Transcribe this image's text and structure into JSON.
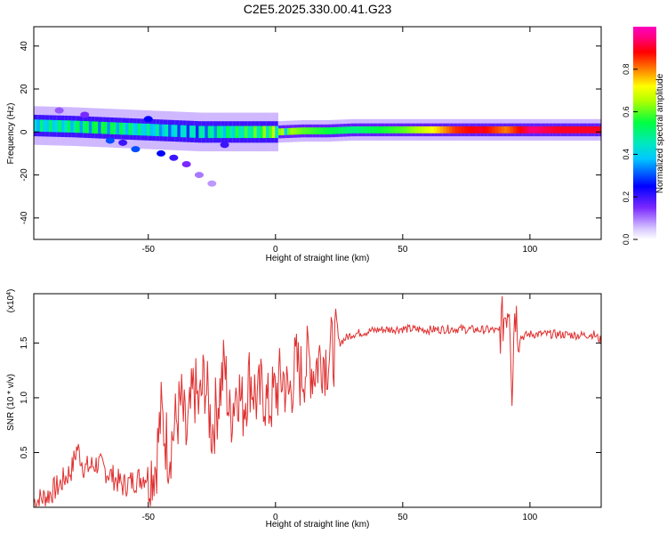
{
  "figure_title": "C2E5.2025.330.00.41.G23",
  "chart_data": [
    {
      "type": "heatmap",
      "title": "C2E5.2025.330.00.41.G23",
      "xlabel": "Height of straight line (km)",
      "ylabel": "Frequency (Hz)",
      "xlim": [
        -95,
        128
      ],
      "ylim": [
        -50,
        49
      ],
      "xticks": [
        -50,
        0,
        50,
        100
      ],
      "yticks": [
        -40,
        -20,
        0,
        20,
        40
      ],
      "colorbar": {
        "label": "Normalized spectral amplitude",
        "range": [
          0,
          1
        ],
        "ticks": [
          0.0,
          0.2,
          0.4,
          0.6,
          0.8
        ],
        "tick_labels": [
          "0.0",
          "0.2",
          "0.4",
          "0.6",
          "0.8"
        ]
      },
      "ridge": {
        "x": [
          -95,
          -80,
          -70,
          -60,
          -50,
          -40,
          -30,
          -20,
          -10,
          0,
          10,
          20,
          30,
          40,
          50,
          60,
          70,
          80,
          90,
          100,
          110,
          120,
          128
        ],
        "frequency_hz": [
          3,
          2.5,
          2,
          1.5,
          1,
          0.5,
          0,
          0,
          0,
          0,
          0.5,
          0.5,
          1,
          1,
          1,
          1,
          1,
          1,
          1,
          1,
          1,
          1,
          1
        ],
        "amplitude": [
          0.5,
          0.55,
          0.6,
          0.55,
          0.5,
          0.45,
          0.5,
          0.55,
          0.6,
          0.7,
          0.6,
          0.55,
          0.5,
          0.55,
          0.6,
          0.7,
          0.85,
          0.9,
          0.8,
          0.95,
          0.9,
          0.9,
          0.9
        ]
      },
      "scatter_blobs": [
        {
          "x": -45,
          "freq": -10,
          "amp": 0.25
        },
        {
          "x": -40,
          "freq": -12,
          "amp": 0.2
        },
        {
          "x": -35,
          "freq": -15,
          "amp": 0.15
        },
        {
          "x": -55,
          "freq": -8,
          "amp": 0.3
        },
        {
          "x": -30,
          "freq": -20,
          "amp": 0.1
        },
        {
          "x": -25,
          "freq": -24,
          "amp": 0.08
        },
        {
          "x": -60,
          "freq": -5,
          "amp": 0.2
        },
        {
          "x": -75,
          "freq": 8,
          "amp": 0.15
        },
        {
          "x": -85,
          "freq": 10,
          "amp": 0.12
        },
        {
          "x": -50,
          "freq": 6,
          "amp": 0.25
        },
        {
          "x": -20,
          "freq": -6,
          "amp": 0.2
        },
        {
          "x": -65,
          "freq": -4,
          "amp": 0.3
        }
      ]
    },
    {
      "type": "line",
      "xlabel": "Height of straight line (km)",
      "ylabel": "SNR (10 * v/v)",
      "y_multiplier": "(x10",
      "y_multiplier_exp": "4",
      "y_multiplier_close": ")",
      "xlim": [
        -95,
        128
      ],
      "ylim": [
        0,
        1.95
      ],
      "xticks": [
        -50,
        0,
        50,
        100
      ],
      "yticks": [
        0.5,
        1.0,
        1.5
      ],
      "ytick_labels": [
        "0.5",
        "1.0",
        "1.5"
      ],
      "color": "#e03030",
      "series": [
        {
          "name": "SNR",
          "x": [
            -95,
            -90,
            -85,
            -80,
            -78,
            -75,
            -70,
            -65,
            -60,
            -55,
            -50,
            -47,
            -45,
            -42,
            -40,
            -37,
            -35,
            -32,
            -30,
            -28,
            -25,
            -22,
            -20,
            -18,
            -15,
            -13,
            -10,
            -7,
            -5,
            -3,
            0,
            3,
            5,
            8,
            10,
            13,
            15,
            18,
            20,
            23,
            25,
            28,
            30,
            35,
            40,
            50,
            60,
            70,
            80,
            85,
            88,
            90,
            92,
            93,
            94,
            96,
            100,
            110,
            120,
            125,
            128
          ],
          "values": [
            0.05,
            0.1,
            0.2,
            0.35,
            0.55,
            0.35,
            0.4,
            0.3,
            0.2,
            0.25,
            0.3,
            0.4,
            0.85,
            0.5,
            0.7,
            0.95,
            0.6,
            1.1,
            0.9,
            1.2,
            0.7,
            1.05,
            1.3,
            0.8,
            1.15,
            0.9,
            1.2,
            0.95,
            1.1,
            0.9,
            1.05,
            1.2,
            1.0,
            1.3,
            1.2,
            1.35,
            1.25,
            1.4,
            1.35,
            1.45,
            1.5,
            1.55,
            1.58,
            1.6,
            1.62,
            1.63,
            1.62,
            1.63,
            1.62,
            1.62,
            1.6,
            1.75,
            1.9,
            1.05,
            1.85,
            1.55,
            1.58,
            1.58,
            1.57,
            1.58,
            1.52
          ]
        }
      ]
    }
  ]
}
